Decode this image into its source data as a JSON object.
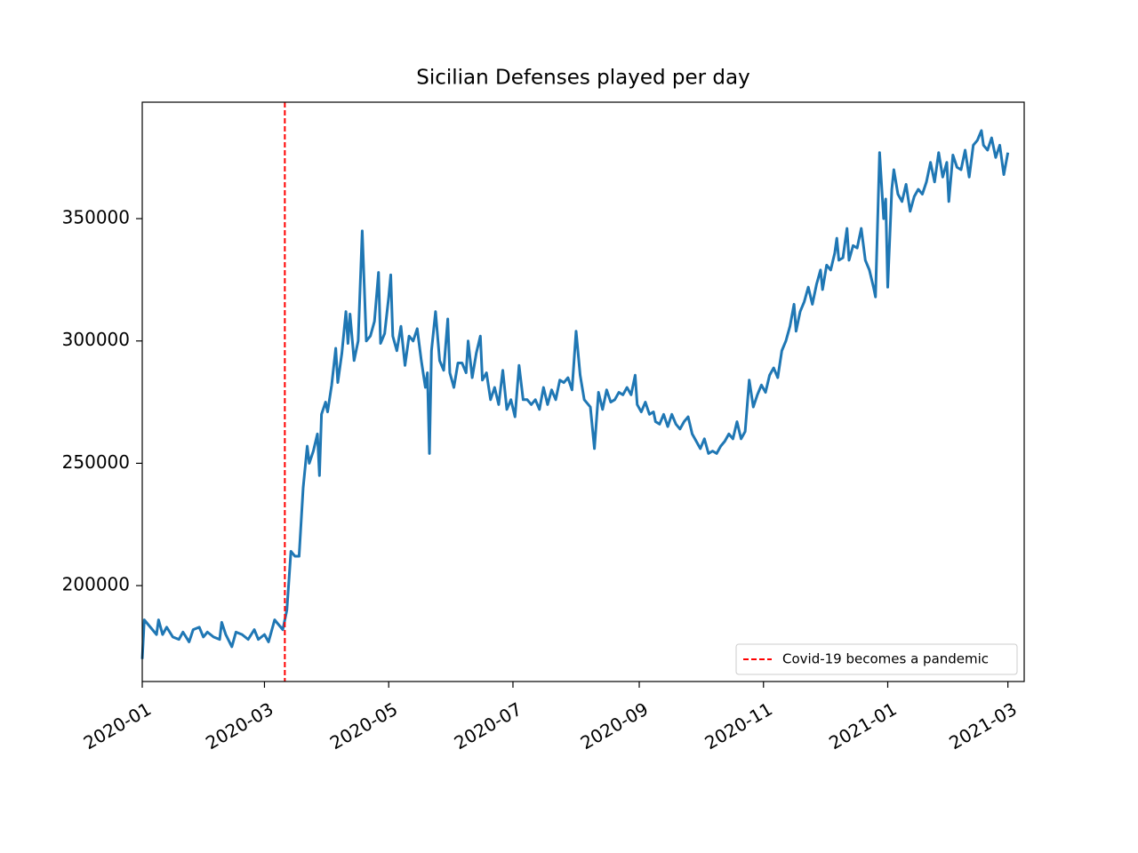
{
  "chart_data": {
    "type": "line",
    "title": "Sicilian Defenses played per day",
    "series": [
      {
        "name": "Sicilian Defenses",
        "color": "#1f77b4",
        "x": [
          0,
          1,
          4,
          7,
          8,
          10,
          12,
          15,
          18,
          20,
          23,
          25,
          28,
          30,
          32,
          35,
          38,
          39,
          41,
          44,
          46,
          49,
          52,
          55,
          57,
          60,
          62,
          65,
          67,
          69,
          71,
          73,
          75,
          77,
          79,
          81,
          82,
          84,
          86,
          87,
          88,
          90,
          91,
          93,
          95,
          96,
          98,
          100,
          101,
          102,
          104,
          106,
          108,
          110,
          112,
          114,
          116,
          117,
          119,
          121,
          122,
          123,
          125,
          127,
          129,
          131,
          133,
          135,
          137,
          139,
          140,
          141,
          142,
          144,
          146,
          148,
          150,
          151,
          153,
          155,
          157,
          159,
          160,
          162,
          164,
          166,
          167,
          169,
          171,
          173,
          175,
          177,
          179,
          181,
          183,
          185,
          187,
          189,
          191,
          193,
          195,
          197,
          199,
          201,
          203,
          205,
          207,
          209,
          211,
          213,
          215,
          217,
          219,
          220,
          222,
          224,
          226,
          228,
          230,
          232,
          234,
          236,
          238,
          240,
          242,
          243,
          245,
          247,
          249,
          251,
          252,
          254,
          256,
          258,
          260,
          262,
          264,
          266,
          268,
          270,
          272,
          274,
          276,
          278,
          280,
          282,
          284,
          286,
          288,
          290,
          292,
          294,
          296,
          298,
          300,
          302,
          304,
          306,
          308,
          310,
          312,
          314,
          316,
          318,
          320,
          321,
          323,
          325,
          327,
          329,
          331,
          333,
          334,
          336,
          338,
          340,
          341,
          342,
          344,
          346,
          347,
          349,
          351,
          353,
          355,
          357,
          359,
          360,
          362,
          364,
          365,
          366,
          368,
          369,
          371,
          373,
          375,
          377,
          379,
          381,
          383,
          385,
          387,
          389,
          391,
          393,
          395,
          396,
          398,
          400,
          402,
          404,
          406,
          408,
          410,
          412,
          413,
          415,
          417,
          419,
          421,
          423,
          425
        ],
        "values": [
          170000,
          186000,
          183000,
          180000,
          186000,
          180000,
          183000,
          179000,
          178000,
          181000,
          177000,
          182000,
          183000,
          179000,
          181000,
          179000,
          178000,
          185000,
          180000,
          175000,
          181000,
          180000,
          178000,
          182000,
          178000,
          180000,
          177000,
          186000,
          184000,
          182000,
          190000,
          214000,
          212000,
          212000,
          240000,
          257000,
          250000,
          255000,
          262000,
          245000,
          270000,
          275000,
          271000,
          282000,
          297000,
          283000,
          295000,
          312000,
          299000,
          311000,
          292000,
          300000,
          345000,
          300000,
          302000,
          308000,
          328000,
          299000,
          303000,
          318000,
          327000,
          302000,
          296000,
          306000,
          290000,
          302000,
          300000,
          305000,
          292000,
          281000,
          287000,
          254000,
          296000,
          312000,
          292000,
          288000,
          309000,
          287000,
          281000,
          291000,
          291000,
          287000,
          300000,
          285000,
          295000,
          302000,
          284000,
          287000,
          276000,
          281000,
          274000,
          288000,
          272000,
          276000,
          269000,
          290000,
          276000,
          276000,
          274000,
          276000,
          272000,
          281000,
          274000,
          280000,
          276000,
          284000,
          283000,
          285000,
          280000,
          304000,
          286000,
          276000,
          274000,
          273000,
          256000,
          279000,
          272000,
          280000,
          275000,
          276000,
          279000,
          278000,
          281000,
          278000,
          286000,
          274000,
          271000,
          275000,
          270000,
          271000,
          267000,
          266000,
          270000,
          265000,
          270000,
          266000,
          264000,
          267000,
          269000,
          262000,
          259000,
          256000,
          260000,
          254000,
          255000,
          254000,
          257000,
          259000,
          262000,
          260000,
          267000,
          260000,
          263000,
          284000,
          273000,
          278000,
          282000,
          279000,
          286000,
          289000,
          285000,
          296000,
          300000,
          306000,
          315000,
          304000,
          312000,
          316000,
          322000,
          315000,
          323000,
          329000,
          321000,
          331000,
          329000,
          336000,
          342000,
          333000,
          334000,
          346000,
          333000,
          339000,
          338000,
          346000,
          333000,
          329000,
          322000,
          318000,
          377000,
          350000,
          358000,
          322000,
          362000,
          370000,
          360000,
          357000,
          364000,
          353000,
          359000,
          362000,
          360000,
          365000,
          373000,
          365000,
          377000,
          367000,
          373000,
          357000,
          376000,
          371000,
          370000,
          378000,
          367000,
          380000,
          382000,
          386000,
          380000,
          378000,
          383000,
          375000,
          380000,
          368000,
          377000
        ]
      }
    ],
    "vlines": [
      {
        "x": 70,
        "name": "Covid-19 becomes a pandemic",
        "color": "#ff0000",
        "dashed": true
      }
    ],
    "xlim": [
      0,
      433
    ],
    "xticks": [
      {
        "value": 0,
        "label": "2020-01"
      },
      {
        "value": 60,
        "label": "2020-03"
      },
      {
        "value": 121,
        "label": "2020-05"
      },
      {
        "value": 182,
        "label": "2020-07"
      },
      {
        "value": 244,
        "label": "2020-09"
      },
      {
        "value": 305,
        "label": "2020-11"
      },
      {
        "value": 366,
        "label": "2021-01"
      },
      {
        "value": 425,
        "label": "2021-03"
      }
    ],
    "ylim": [
      160800,
      397600
    ],
    "yticks": [
      200000,
      250000,
      300000,
      350000
    ],
    "legend": "lower right",
    "grid": false
  }
}
